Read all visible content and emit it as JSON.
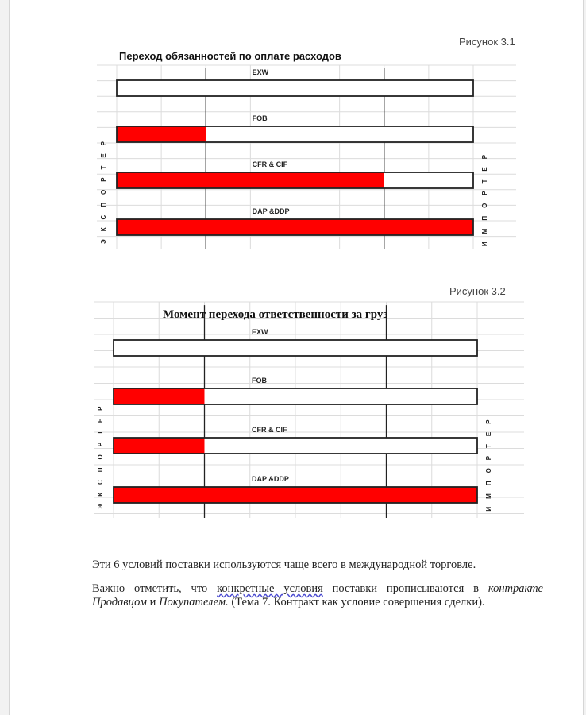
{
  "figures": [
    {
      "caption": "Рисунок 3.1",
      "title": "Переход обязанностей по оплате расходов",
      "left_label": "ЭКСПОРТЕР",
      "right_label": "ИМПОРТЕР"
    },
    {
      "caption": "Рисунок 3.2",
      "title": "Момент перехода ответственности за груз",
      "left_label": "ЭКСПОРТЕР",
      "right_label": "ИМПОРТЕР"
    }
  ],
  "chart_data": [
    {
      "type": "bar",
      "title": "Переход обязанностей по оплате расходов",
      "categories": [
        "EXW",
        "FOB",
        "CFR & CIF",
        "DAP &DDP"
      ],
      "values": [
        0,
        0.25,
        0.75,
        1.0
      ],
      "xlim": [
        0,
        1
      ],
      "grid": true,
      "fill_color": "#ff0000"
    },
    {
      "type": "bar",
      "title": "Момент перехода ответственности за груз",
      "categories": [
        "EXW",
        "FOB",
        "CFR & CIF",
        "DAP &DDP"
      ],
      "values": [
        0,
        0.25,
        0.25,
        1.0
      ],
      "xlim": [
        0,
        1
      ],
      "grid": true,
      "fill_color": "#ff0000"
    }
  ],
  "text": {
    "p1": "Эти 6 условий поставки используются чаще всего в международной торговле.",
    "p2_a": "Важно отметить, что ",
    "p2_b": "конкретные   условия",
    "p2_c": " поставки прописываются в ",
    "p2_d": "контракте Продавцом",
    "p2_e": " и ",
    "p2_f": "Покупателем.",
    "p2_g": " (Тема 7. Контракт как условие совершения сделки)."
  }
}
